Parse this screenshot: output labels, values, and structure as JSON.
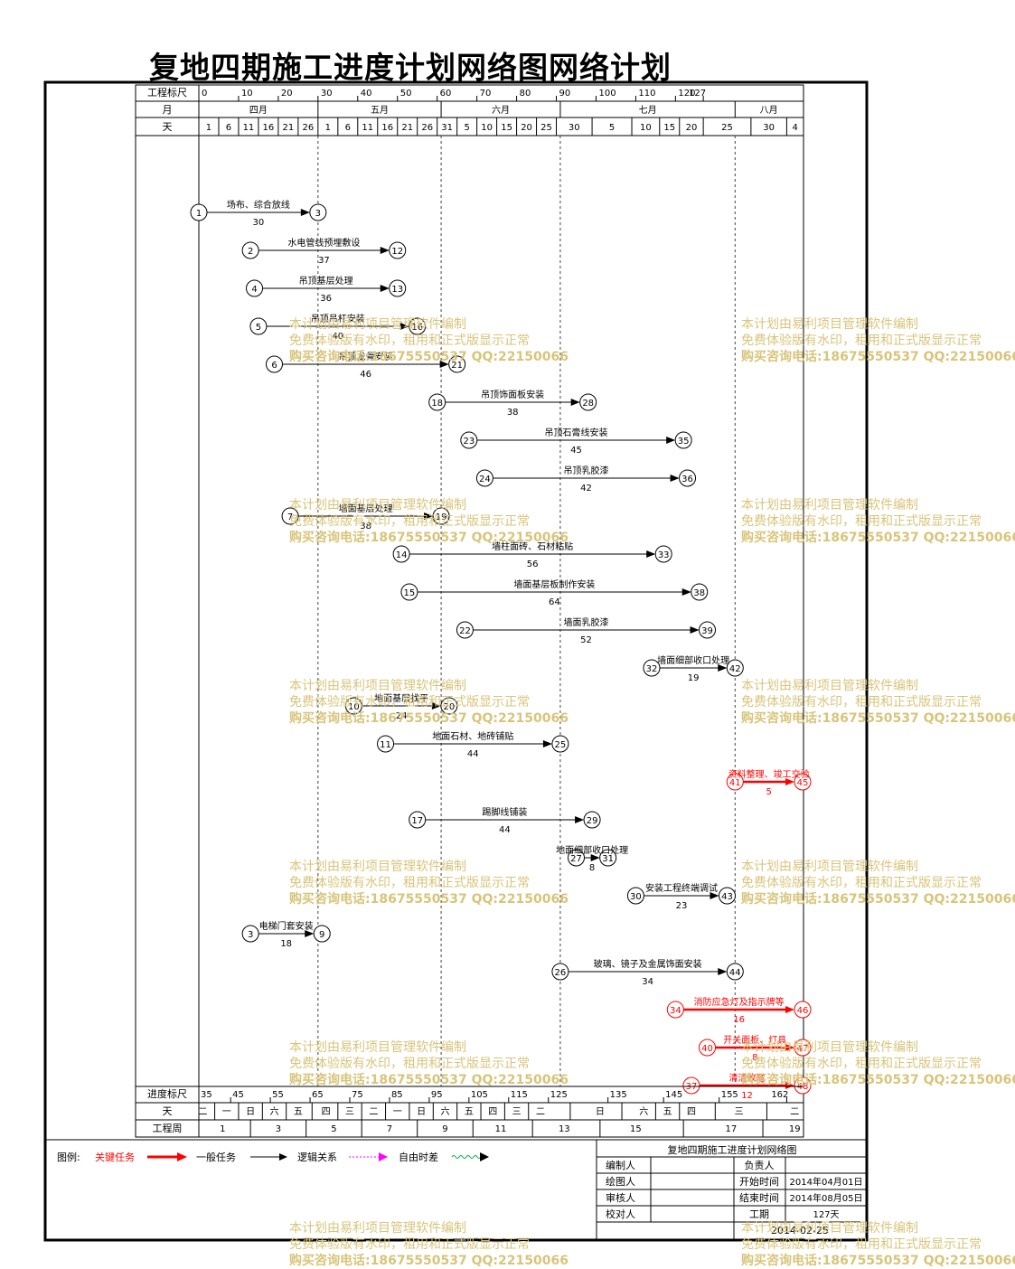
{
  "title": "复地四期施工进度计划网络图网络计划",
  "header": {
    "scale_label": "工程标尺",
    "scale_ticks": [
      {
        "v": 0,
        "t": "0"
      },
      {
        "v": 10,
        "t": "10"
      },
      {
        "v": 20,
        "t": "20"
      },
      {
        "v": 30,
        "t": "30"
      },
      {
        "v": 40,
        "t": "40"
      },
      {
        "v": 50,
        "t": "50"
      },
      {
        "v": 60,
        "t": "60"
      },
      {
        "v": 70,
        "t": "70"
      },
      {
        "v": 80,
        "t": "80"
      },
      {
        "v": 90,
        "t": "90"
      },
      {
        "v": 100,
        "t": "100"
      },
      {
        "v": 110,
        "t": "110"
      },
      {
        "v": 120,
        "t": "120"
      },
      {
        "v": 127,
        "t": "127"
      }
    ],
    "month_label": "月",
    "months": [
      {
        "name": "四月",
        "start": 0,
        "end": 30
      },
      {
        "name": "五月",
        "start": 30,
        "end": 61
      },
      {
        "name": "六月",
        "start": 61,
        "end": 91
      },
      {
        "name": "七月",
        "start": 91,
        "end": 135
      },
      {
        "name": "八月",
        "start": 135,
        "end": 152
      }
    ],
    "day_label": "天",
    "days": [
      {
        "v": 0,
        "t": "1"
      },
      {
        "v": 5,
        "t": "6"
      },
      {
        "v": 10,
        "t": "11"
      },
      {
        "v": 15,
        "t": "16"
      },
      {
        "v": 20,
        "t": "21"
      },
      {
        "v": 25,
        "t": "26"
      },
      {
        "v": 30,
        "t": "1"
      },
      {
        "v": 35,
        "t": "6"
      },
      {
        "v": 40,
        "t": "11"
      },
      {
        "v": 45,
        "t": "16"
      },
      {
        "v": 50,
        "t": "21"
      },
      {
        "v": 55,
        "t": "26"
      },
      {
        "v": 60,
        "t": "31"
      },
      {
        "v": 65,
        "t": "5"
      },
      {
        "v": 70,
        "t": "10"
      },
      {
        "v": 75,
        "t": "15"
      },
      {
        "v": 80,
        "t": "20"
      },
      {
        "v": 85,
        "t": "25"
      },
      {
        "v": 90,
        "t": "30"
      },
      {
        "v": 99,
        "t": "5"
      },
      {
        "v": 109,
        "t": "10"
      },
      {
        "v": 116,
        "t": "15"
      },
      {
        "v": 121,
        "t": "20"
      },
      {
        "v": 127,
        "t": "25"
      },
      {
        "v": 139,
        "t": "30"
      },
      {
        "v": 148,
        "t": "4"
      }
    ]
  },
  "footer": {
    "progress_label": "进度标尺",
    "progress_ticks": [
      {
        "v": 0,
        "t": "35"
      },
      {
        "v": 8,
        "t": "45"
      },
      {
        "v": 18,
        "t": "55"
      },
      {
        "v": 28,
        "t": "65"
      },
      {
        "v": 38,
        "t": "75"
      },
      {
        "v": 48,
        "t": "85"
      },
      {
        "v": 58,
        "t": "95"
      },
      {
        "v": 68,
        "t": "105"
      },
      {
        "v": 78,
        "t": "115"
      },
      {
        "v": 88,
        "t": "125"
      },
      {
        "v": 103,
        "t": "135"
      },
      {
        "v": 117,
        "t": "145"
      },
      {
        "v": 131,
        "t": "155"
      },
      {
        "v": 148,
        "t": "162"
      }
    ],
    "weekday_label": "天",
    "weekdays": [
      {
        "v": 1,
        "t": "二"
      },
      {
        "v": 7,
        "t": "一"
      },
      {
        "v": 13,
        "t": "日"
      },
      {
        "v": 19,
        "t": "六"
      },
      {
        "v": 25,
        "t": "五"
      },
      {
        "v": 32,
        "t": "四"
      },
      {
        "v": 38,
        "t": "三"
      },
      {
        "v": 44,
        "t": "二"
      },
      {
        "v": 50,
        "t": "一"
      },
      {
        "v": 56,
        "t": "日"
      },
      {
        "v": 62,
        "t": "六"
      },
      {
        "v": 68,
        "t": "五"
      },
      {
        "v": 74,
        "t": "四"
      },
      {
        "v": 80,
        "t": "三"
      },
      {
        "v": 86,
        "t": "二"
      },
      {
        "v": 101,
        "t": "日"
      },
      {
        "v": 112,
        "t": "六"
      },
      {
        "v": 118,
        "t": "五"
      },
      {
        "v": 124,
        "t": "四"
      },
      {
        "v": 136,
        "t": "三"
      },
      {
        "v": 150,
        "t": "二"
      }
    ],
    "week_label": "工程周",
    "weeks": [
      {
        "v": 6,
        "t": "1"
      },
      {
        "v": 20,
        "t": "3"
      },
      {
        "v": 34,
        "t": "5"
      },
      {
        "v": 48,
        "t": "7"
      },
      {
        "v": 62,
        "t": "9"
      },
      {
        "v": 76,
        "t": "11"
      },
      {
        "v": 92,
        "t": "13"
      },
      {
        "v": 110,
        "t": "15"
      },
      {
        "v": 134,
        "t": "17"
      },
      {
        "v": 150,
        "t": "19"
      }
    ]
  },
  "tasks": [
    {
      "from": "1",
      "to": "3",
      "s": 0,
      "e": 30,
      "name": "场布、综合放线",
      "dur": "30",
      "critical": false
    },
    {
      "from": "2",
      "to": "12",
      "s": 13,
      "e": 50,
      "name": "水电管线预埋敷设",
      "dur": "37",
      "critical": false
    },
    {
      "from": "4",
      "to": "13",
      "s": 14,
      "e": 50,
      "name": "吊顶基层处理",
      "dur": "36",
      "critical": false
    },
    {
      "from": "5",
      "to": "16",
      "s": 15,
      "e": 55,
      "name": "吊顶吊杆安装",
      "dur": "40",
      "critical": false
    },
    {
      "from": "6",
      "to": "21",
      "s": 19,
      "e": 65,
      "name": "吊顶龙骨安装",
      "dur": "46",
      "critical": false
    },
    {
      "from": "18",
      "to": "28",
      "s": 60,
      "e": 98,
      "name": "吊顶饰面板安装",
      "dur": "38",
      "critical": false
    },
    {
      "from": "23",
      "to": "35",
      "s": 68,
      "e": 122,
      "name": "吊顶石膏线安装",
      "dur": "45",
      "critical": false
    },
    {
      "from": "24",
      "to": "36",
      "s": 72,
      "e": 123,
      "name": "吊顶乳胶漆",
      "dur": "42",
      "critical": false
    },
    {
      "from": "7",
      "to": "19",
      "s": 23,
      "e": 61,
      "name": "墙面基层处理",
      "dur": "38",
      "critical": false
    },
    {
      "from": "14",
      "to": "33",
      "s": 51,
      "e": 117,
      "name": "墙柱面砖、石材粘贴",
      "dur": "56",
      "critical": false
    },
    {
      "from": "15",
      "to": "38",
      "s": 53,
      "e": 126,
      "name": "墙面基层板制作安装",
      "dur": "64",
      "critical": false
    },
    {
      "from": "22",
      "to": "39",
      "s": 67,
      "e": 128,
      "name": "墙面乳胶漆",
      "dur": "52",
      "critical": false
    },
    {
      "from": "32",
      "to": "42",
      "s": 114,
      "e": 135,
      "name": "墙面细部收口处理",
      "dur": "19",
      "critical": false
    },
    {
      "from": "10",
      "to": "20",
      "s": 39,
      "e": 63,
      "name": "地面基层找平",
      "dur": "24",
      "critical": false
    },
    {
      "from": "11",
      "to": "25",
      "s": 47,
      "e": 91,
      "name": "地面石材、地砖铺贴",
      "dur": "44",
      "critical": false
    },
    {
      "from": "41",
      "to": "45",
      "s": 135,
      "e": 152,
      "name": "资料整理、竣工交验",
      "dur": "5",
      "critical": true
    },
    {
      "from": "17",
      "to": "29",
      "s": 55,
      "e": 99,
      "name": "踢脚线铺装",
      "dur": "44",
      "critical": false
    },
    {
      "from": "27",
      "to": "31",
      "s": 95,
      "e": 103,
      "name": "地面细部收口处理",
      "dur": "8",
      "critical": false
    },
    {
      "from": "30",
      "to": "43",
      "s": 110,
      "e": 133,
      "name": "安装工程终端调试",
      "dur": "23",
      "critical": false
    },
    {
      "from": "3",
      "to": "9",
      "s": 13,
      "e": 31,
      "name": "电梯门套安装",
      "dur": "18",
      "critical": false
    },
    {
      "from": "26",
      "to": "44",
      "s": 91,
      "e": 135,
      "name": "玻璃、镜子及金属饰面安装",
      "dur": "34",
      "critical": false
    },
    {
      "from": "34",
      "to": "46",
      "s": 120,
      "e": 152,
      "name": "消防应急灯及指示牌等",
      "dur": "16",
      "critical": true
    },
    {
      "from": "40",
      "to": "47",
      "s": 128,
      "e": 152,
      "name": "开关面板、灯具",
      "dur": "8",
      "critical": true
    },
    {
      "from": "37",
      "to": "48",
      "s": 124,
      "e": 152,
      "name": "清洁收尾",
      "dur": "12",
      "critical": true
    }
  ],
  "legend": {
    "label": "图例:",
    "critical": "关键任务",
    "normal": "一般任务",
    "logic": "逻辑关系",
    "float": "自由时差",
    "critical_color": "#ff0000",
    "logic_color": "#ff00ff",
    "float_color": "#00b050"
  },
  "info": {
    "title": "复地四期施工进度计划网络图",
    "editor_label": "编制人",
    "owner_label": "负责人",
    "drawer_label": "绘图人",
    "start_label": "开始时间",
    "start_value": "2014年04月01日",
    "reviewer_label": "审核人",
    "end_label": "结束时间",
    "end_value": "2014年08月05日",
    "checker_label": "校对人",
    "period_label": "工期",
    "period_value": "127天",
    "date_value": "2014-02-25"
  },
  "watermark": {
    "line1": "本计划由易利项目管理软件编制",
    "line2": "免费体验版有水印，租用和正式版显示正常",
    "line3": "购买咨询电话:18675550537 QQ:22150066"
  }
}
